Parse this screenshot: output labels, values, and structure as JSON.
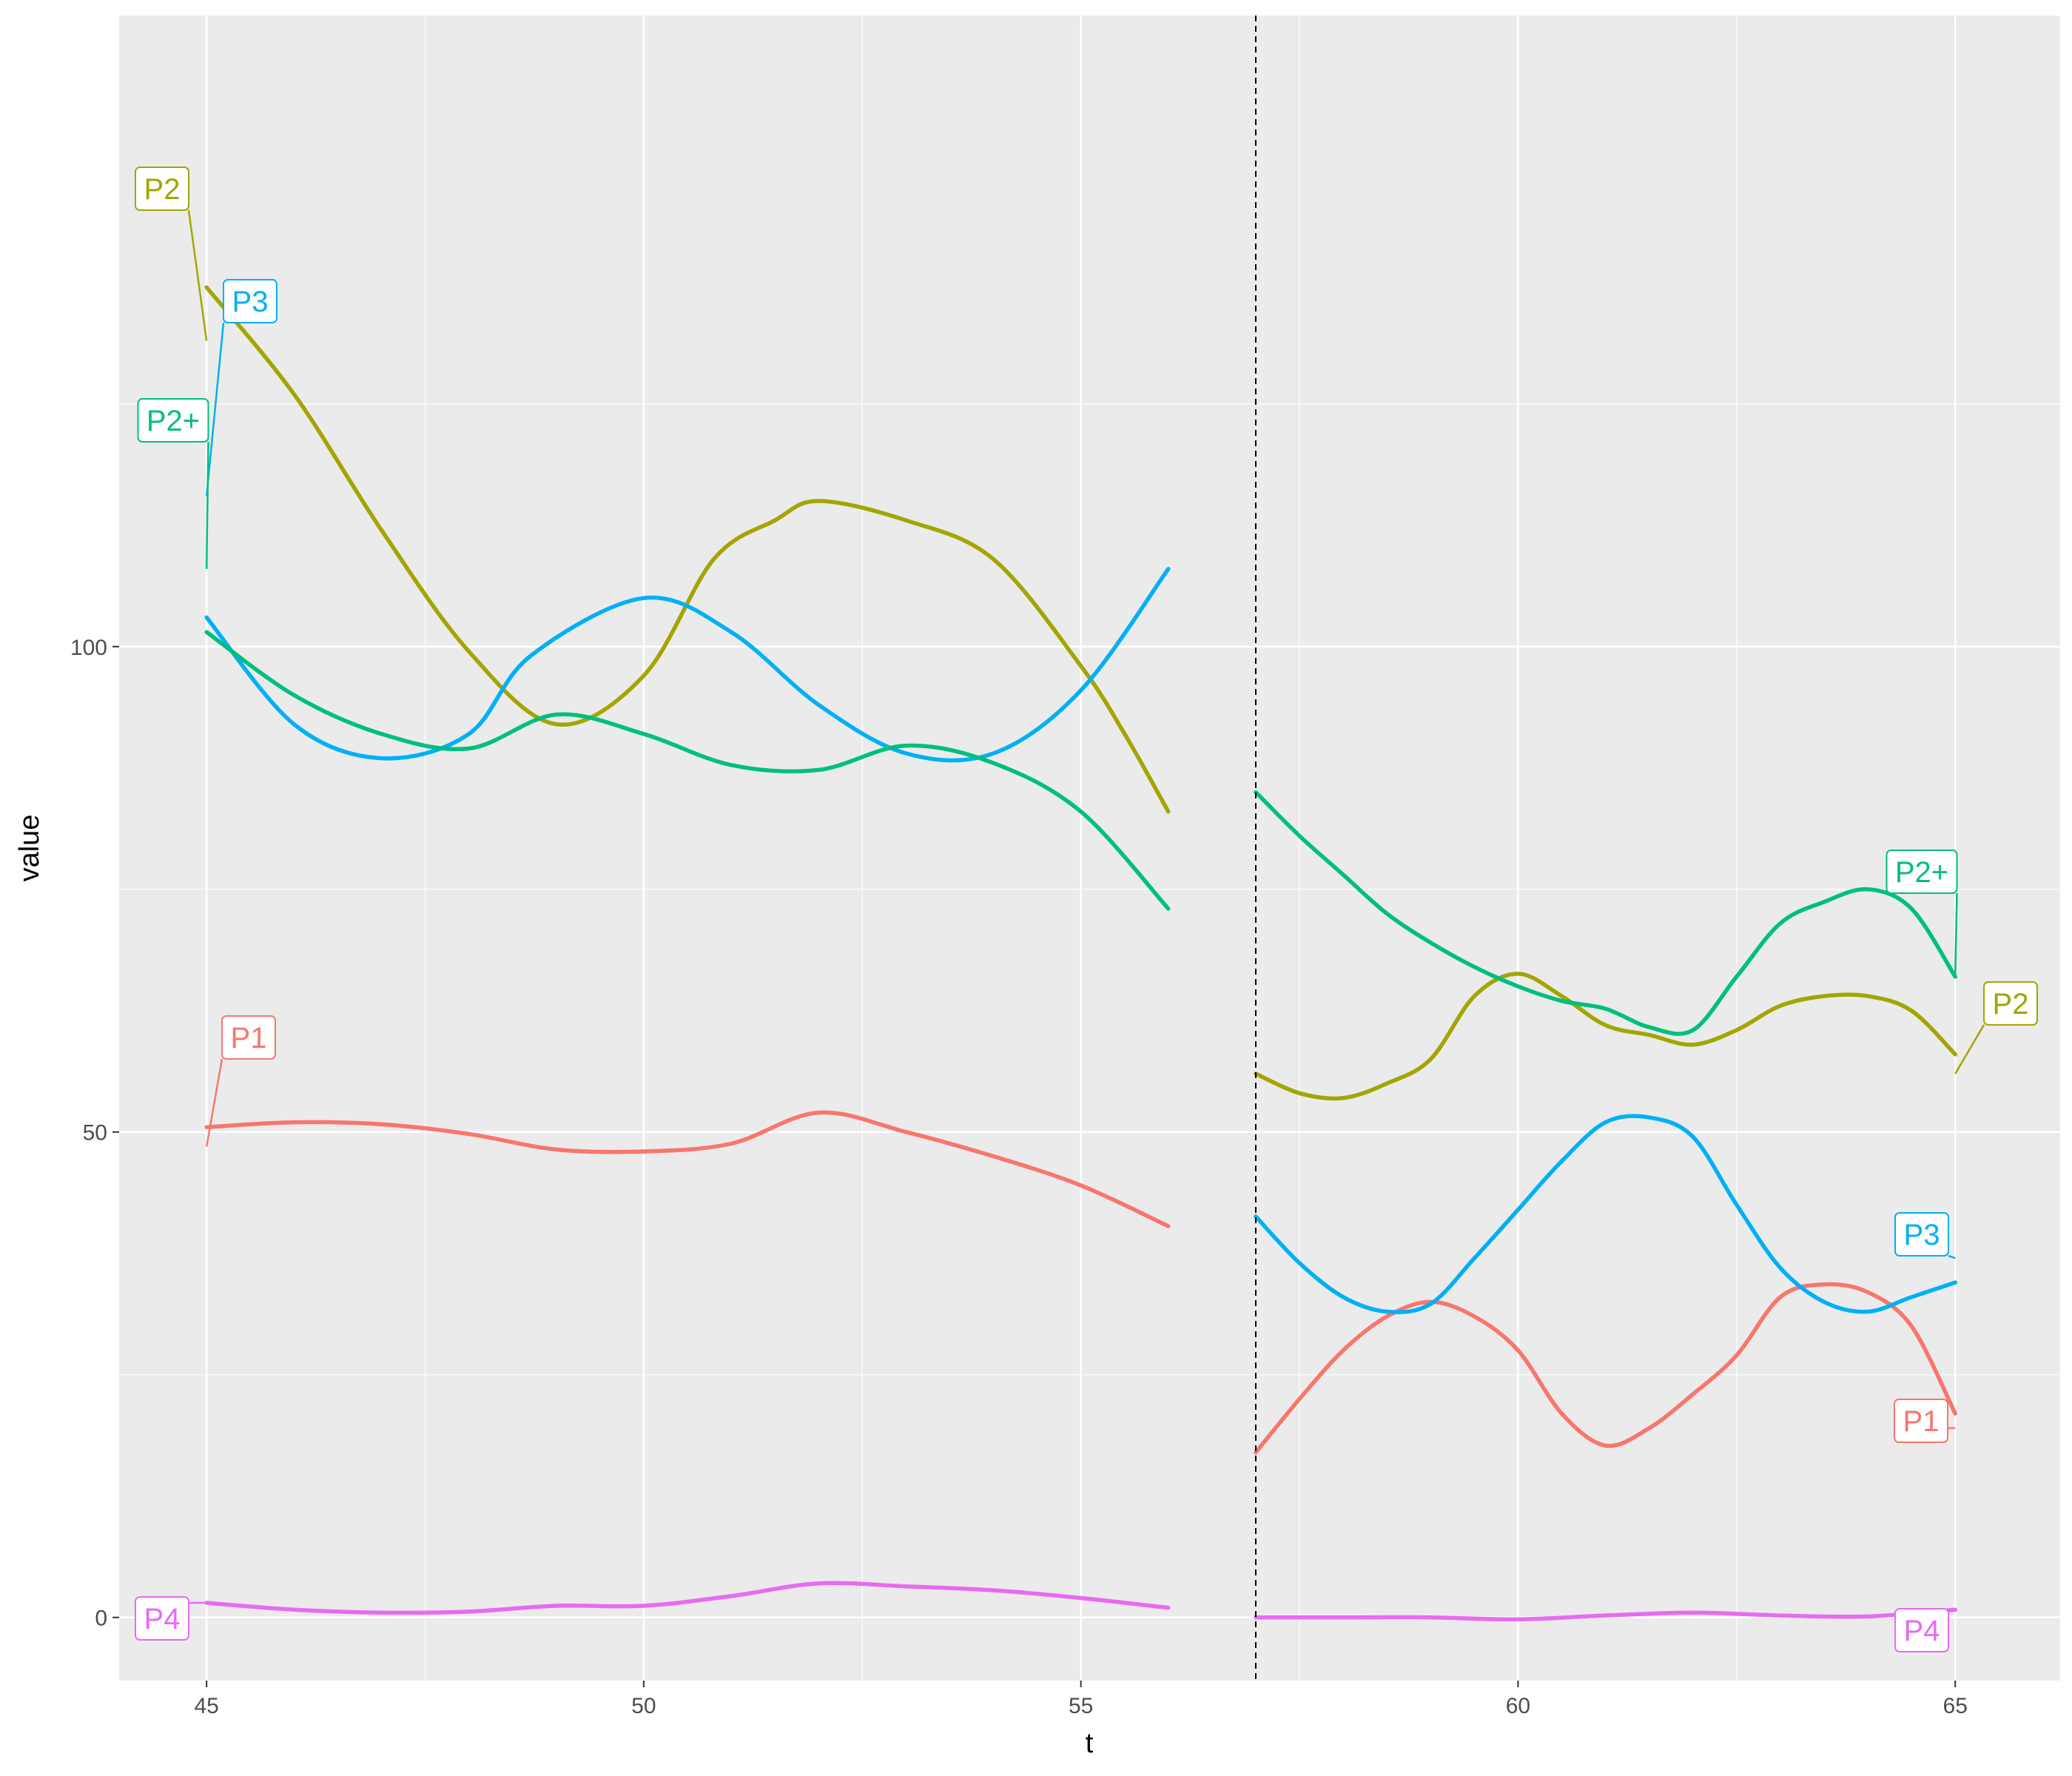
{
  "chart_data": {
    "type": "line",
    "title": "",
    "xlabel": "t",
    "ylabel": "value",
    "xlim": [
      44,
      66.2
    ],
    "ylim": [
      -6.5,
      165
    ],
    "x_ticks": [
      45,
      50,
      55,
      60,
      65
    ],
    "x_tick_labels": [
      "45",
      "50",
      "55",
      "60",
      "65"
    ],
    "y_ticks": [
      0,
      50,
      100
    ],
    "y_tick_labels": [
      "0",
      "50",
      "100"
    ],
    "grid": true,
    "legend": "none",
    "vline_x": 57,
    "series": [
      {
        "name": "P1",
        "color": "#F8766D",
        "segments": [
          [
            [
              45,
              50.5
            ],
            [
              46,
              51
            ],
            [
              47,
              50.8
            ],
            [
              48,
              49.8
            ],
            [
              49,
              48.2
            ],
            [
              50,
              48
            ],
            [
              51,
              48.8
            ],
            [
              52,
              52
            ],
            [
              53,
              50
            ],
            [
              54,
              47.5
            ],
            [
              55,
              44.5
            ],
            [
              56,
              40.3
            ]
          ],
          [
            [
              57,
              17
            ],
            [
              57.5,
              22.5
            ],
            [
              58,
              27.5
            ],
            [
              58.5,
              31
            ],
            [
              59,
              32.5
            ],
            [
              59.5,
              31
            ],
            [
              60,
              27.5
            ],
            [
              60.5,
              21
            ],
            [
              61,
              17.7
            ],
            [
              61.5,
              19.5
            ],
            [
              62,
              23
            ],
            [
              62.5,
              27
            ],
            [
              63,
              33
            ],
            [
              63.5,
              34.3
            ],
            [
              64,
              33.5
            ],
            [
              64.5,
              30
            ],
            [
              65,
              21
            ]
          ]
        ],
        "label": {
          "text": "P1",
          "anchors": [
            [
              45,
              48.5
            ],
            [
              65,
              19.5
            ]
          ]
        }
      },
      {
        "name": "P2",
        "color": "#A3A500",
        "segments": [
          [
            [
              45,
              137
            ],
            [
              46,
              126
            ],
            [
              47,
              112
            ],
            [
              48,
              99.5
            ],
            [
              49,
              92
            ],
            [
              50,
              97
            ],
            [
              50.8,
              109
            ],
            [
              51.5,
              113
            ],
            [
              52,
              115
            ],
            [
              53,
              113
            ],
            [
              54,
              109
            ],
            [
              55,
              98
            ],
            [
              55.5,
              91
            ],
            [
              56,
              83
            ]
          ],
          [
            [
              57,
              56
            ],
            [
              57.5,
              54
            ],
            [
              58,
              53.5
            ],
            [
              58.5,
              55
            ],
            [
              59,
              57.5
            ],
            [
              59.5,
              64
            ],
            [
              60,
              66.3
            ],
            [
              60.5,
              64
            ],
            [
              61,
              61
            ],
            [
              61.5,
              60
            ],
            [
              62,
              59
            ],
            [
              62.5,
              60.5
            ],
            [
              63,
              63
            ],
            [
              63.5,
              64
            ],
            [
              64,
              64
            ],
            [
              64.5,
              62.5
            ],
            [
              65,
              58
            ]
          ]
        ],
        "label": {
          "text": "P2",
          "anchors": [
            [
              45,
              131.5
            ],
            [
              65,
              56
            ]
          ]
        }
      },
      {
        "name": "P3",
        "color": "#00B0F6",
        "segments": [
          [
            [
              45,
              103
            ],
            [
              46,
              92
            ],
            [
              47,
              88.5
            ],
            [
              48,
              91
            ],
            [
              48.7,
              99
            ],
            [
              50,
              105
            ],
            [
              51,
              101.5
            ],
            [
              52,
              94
            ],
            [
              53,
              89
            ],
            [
              54,
              89
            ],
            [
              55,
              95.5
            ],
            [
              56,
              108
            ]
          ],
          [
            [
              57,
              41.3
            ],
            [
              57.5,
              36.5
            ],
            [
              58,
              33
            ],
            [
              58.5,
              31.5
            ],
            [
              59,
              32.3
            ],
            [
              59.5,
              37
            ],
            [
              60,
              42
            ],
            [
              60.5,
              47
            ],
            [
              61,
              51
            ],
            [
              61.5,
              51.5
            ],
            [
              62,
              49.5
            ],
            [
              62.5,
              42.5
            ],
            [
              63,
              36
            ],
            [
              63.5,
              32.5
            ],
            [
              64,
              31.5
            ],
            [
              64.5,
              33
            ],
            [
              65,
              34.5
            ]
          ]
        ],
        "label": {
          "text": "P3",
          "anchors": [
            [
              45,
              115.5
            ],
            [
              65,
              37
            ]
          ]
        }
      },
      {
        "name": "P2+",
        "color": "#00BF7D",
        "segments": [
          [
            [
              45,
              101.5
            ],
            [
              46,
              95
            ],
            [
              47,
              91
            ],
            [
              48,
              89.5
            ],
            [
              49,
              93
            ],
            [
              50,
              91
            ],
            [
              51,
              87.8
            ],
            [
              52,
              87.3
            ],
            [
              53,
              89.8
            ],
            [
              54,
              88
            ],
            [
              55,
              83
            ],
            [
              56,
              73
            ]
          ],
          [
            [
              57,
              85
            ],
            [
              57.5,
              80.5
            ],
            [
              58,
              76.5
            ],
            [
              58.5,
              72.5
            ],
            [
              59,
              69.5
            ],
            [
              59.5,
              67
            ],
            [
              60,
              65
            ],
            [
              60.5,
              63.5
            ],
            [
              61,
              62.7
            ],
            [
              61.5,
              60.8
            ],
            [
              62,
              60.5
            ],
            [
              62.5,
              66
            ],
            [
              63,
              71.5
            ],
            [
              63.5,
              73.7
            ],
            [
              64,
              75
            ],
            [
              64.5,
              73
            ],
            [
              65,
              66
            ]
          ]
        ],
        "label": {
          "text": "P2+",
          "anchors": [
            [
              45,
              108
            ],
            [
              65,
              66
            ]
          ]
        }
      },
      {
        "name": "P4",
        "color": "#E76BF3",
        "segments": [
          [
            [
              45,
              1.5
            ],
            [
              46,
              0.8
            ],
            [
              47,
              0.5
            ],
            [
              48,
              0.6
            ],
            [
              49,
              1.2
            ],
            [
              50,
              1.2
            ],
            [
              51,
              2.2
            ],
            [
              52,
              3.5
            ],
            [
              53,
              3.2
            ],
            [
              54,
              2.8
            ],
            [
              55,
              2
            ],
            [
              56,
              1
            ]
          ],
          [
            [
              57,
              0
            ],
            [
              58,
              0
            ],
            [
              59,
              0
            ],
            [
              60,
              -0.2
            ],
            [
              61,
              0.2
            ],
            [
              62,
              0.5
            ],
            [
              63,
              0.2
            ],
            [
              64,
              0.1
            ],
            [
              65,
              0.8
            ]
          ]
        ],
        "label": {
          "text": "P4",
          "anchors": [
            [
              45,
              1.5
            ],
            [
              65,
              0.8
            ]
          ]
        }
      }
    ]
  }
}
